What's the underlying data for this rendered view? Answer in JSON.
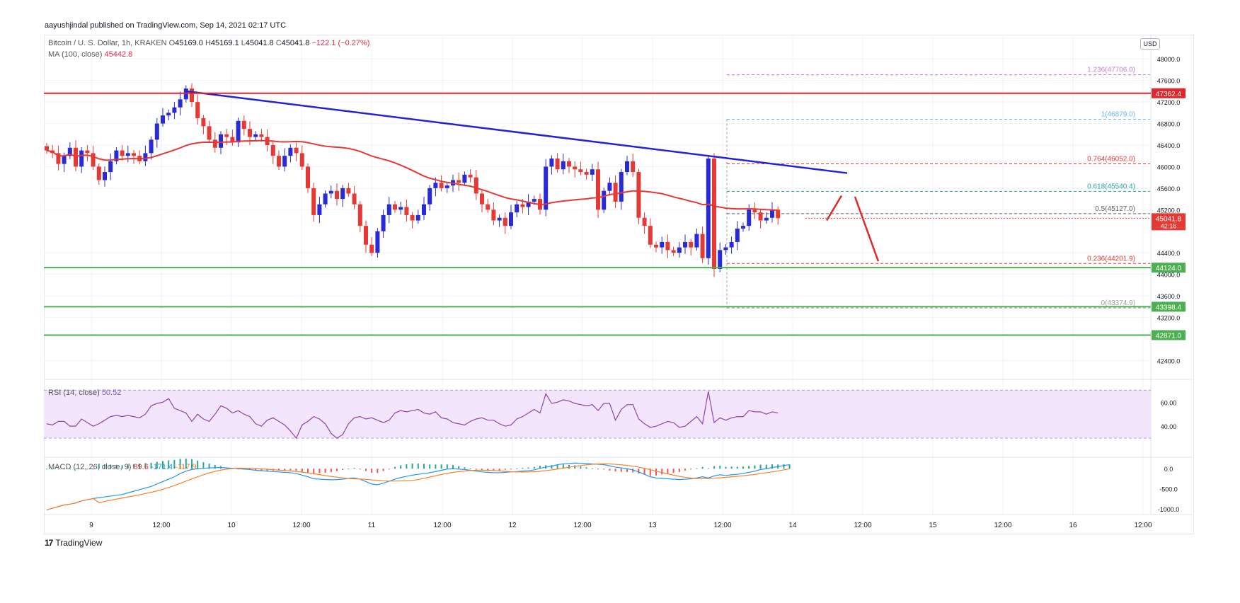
{
  "publish_line": "aayushjindal published on TradingView.com, Sep 14, 2021 02:17 UTC",
  "legend": {
    "symbol": "Bitcoin / U. S. Dollar, 1h, KRAKEN",
    "o_label": "O",
    "o": "45169.0",
    "h_label": "H",
    "h": "45169.1",
    "l_label": "L",
    "l": "45041.8",
    "c_label": "C",
    "c": "45041.8",
    "change": "−122.1 (−0.27%)",
    "ma_label": "MA (100, close)",
    "ma_value": "45442.8",
    "rsi_label": "RSI (14, close)",
    "rsi_value": "50.52",
    "macd_label": "MACD (12, 26, close, 9)",
    "macd_v1": "89.6",
    "macd_v2": "-171.4",
    "macd_v3": "-117.9"
  },
  "currency_button": "USD",
  "brand": {
    "logo": "17",
    "name": "TradingView"
  },
  "colors": {
    "up": "#2929d6",
    "down": "#e53935",
    "ma": "#e53935",
    "trendline": "#2323d4",
    "resistance": "#e0272b",
    "support": "#4caf50",
    "rsi": "#8e44ad",
    "rsi_band": "#f3e5fb",
    "macd": "#2196f3",
    "signal": "#ff7f27",
    "fib": "#9e9e9e"
  },
  "chart_data": {
    "type": "candlestick",
    "symbol": "Bitcoin / U. S. Dollar",
    "interval": "1h",
    "exchange": "KRAKEN",
    "x_ticks": [
      "9",
      "12:00",
      "10",
      "12:00",
      "11",
      "12:00",
      "12",
      "12:00",
      "13",
      "12:00",
      "14",
      "12:00",
      "15",
      "12:00",
      "16",
      "12:00"
    ],
    "y_ticks": [
      "48000.0",
      "47600.0",
      "47200.0",
      "46800.0",
      "46400.0",
      "46000.0",
      "45600.0",
      "45200.0",
      "44400.0",
      "44000.0",
      "43600.0",
      "43200.0",
      "42400.0"
    ],
    "ylim": [
      42050,
      48450
    ],
    "candles_close": [
      46300,
      46250,
      46050,
      46200,
      46350,
      46000,
      46300,
      46250,
      46000,
      45750,
      45900,
      46100,
      46300,
      46200,
      46250,
      46200,
      46100,
      46250,
      46500,
      46800,
      46950,
      47000,
      47100,
      47250,
      47450,
      47200,
      46900,
      46750,
      46500,
      46350,
      46600,
      46550,
      46450,
      46850,
      46700,
      46550,
      46600,
      46550,
      46400,
      46200,
      46000,
      46200,
      46350,
      46250,
      46000,
      45600,
      45100,
      45300,
      45500,
      45550,
      45400,
      45600,
      45500,
      45300,
      44900,
      44550,
      44400,
      44800,
      45100,
      45300,
      45200,
      45250,
      45100,
      45000,
      45100,
      45300,
      45600,
      45700,
      45600,
      45650,
      45750,
      45700,
      45850,
      45800,
      45500,
      45300,
      45200,
      45000,
      45050,
      44900,
      45150,
      45300,
      45250,
      45350,
      45400,
      45200,
      46000,
      46150,
      45950,
      46100,
      46000,
      45950,
      45900,
      45850,
      45950,
      45200,
      45550,
      45700,
      45350,
      45900,
      46100,
      45900,
      45050,
      44900,
      44550,
      44500,
      44600,
      44450,
      44400,
      44500,
      44600,
      44500,
      44750,
      44300,
      46150,
      44100,
      44450,
      44500,
      44600,
      44850,
      44900,
      45200,
      45150,
      45000,
      45050,
      45200,
      45041.8
    ],
    "ma_100": {
      "label": "MA (100, close)",
      "last": 45442.8
    },
    "horizontal_levels": [
      {
        "label": "47362.4",
        "value": 47362.4,
        "kind": "resistance"
      },
      {
        "label": "44124.0",
        "value": 44124.0,
        "kind": "support"
      },
      {
        "label": "43398.4",
        "value": 43398.4,
        "kind": "support"
      },
      {
        "label": "42871.0",
        "value": 42871.0,
        "kind": "support"
      }
    ],
    "last_price": {
      "label": "45041.8",
      "countdown": "42:16"
    },
    "fibonacci": [
      {
        "label": "1.236(47706.0)",
        "value": 47706.0
      },
      {
        "label": "1(46879.0)",
        "value": 46879.0
      },
      {
        "label": "0.764(46052.0)",
        "value": 46052.0
      },
      {
        "label": "0.618(45540.4)",
        "value": 45540.4
      },
      {
        "label": "0.5(45127.0)",
        "value": 45127.0
      },
      {
        "label": "0.236(44201.9)",
        "value": 44201.9
      },
      {
        "label": "0(43374.9)",
        "value": 43374.9
      }
    ],
    "trendline": {
      "from_value": 47400,
      "to_value": 45880
    },
    "rsi": {
      "y_ticks": [
        "60.00",
        "40.00"
      ],
      "upper": 70,
      "lower": 30,
      "values": [
        42,
        41,
        44,
        44,
        40,
        40,
        46,
        43,
        40,
        42,
        45,
        48,
        49,
        48,
        49,
        48,
        47,
        50,
        57,
        59,
        60,
        63,
        55,
        53,
        51,
        44,
        50,
        46,
        44,
        50,
        57,
        55,
        51,
        53,
        50,
        48,
        42,
        40,
        45,
        47,
        44,
        41,
        36,
        30,
        41,
        44,
        48,
        46,
        42,
        34,
        30,
        33,
        42,
        47,
        48,
        46,
        47,
        45,
        43,
        45,
        51,
        53,
        52,
        53,
        54,
        51,
        50,
        52,
        47,
        46,
        43,
        42,
        41,
        44,
        46,
        47,
        45,
        45,
        42,
        40,
        41,
        46,
        48,
        51,
        54,
        51,
        67,
        59,
        60,
        62,
        61,
        59,
        58,
        57,
        58,
        53,
        59,
        59,
        45,
        54,
        58,
        58,
        46,
        42,
        39,
        40,
        42,
        44,
        43,
        39,
        40,
        44,
        48,
        42,
        69,
        43,
        47,
        45,
        47,
        48,
        48,
        53,
        52,
        52,
        50,
        52,
        51
      ]
    },
    "macd": {
      "y_ticks": [
        "0.0",
        "-500.0",
        "-1000.0"
      ],
      "macd_values": [
        -1020,
        -980,
        -940,
        -900,
        -880,
        -850,
        -800,
        -770,
        -740,
        -720,
        -700,
        -680,
        -660,
        -640,
        -600,
        -560,
        -520,
        -480,
        -440,
        -380,
        -320,
        -260,
        -200,
        -120,
        -60,
        -20,
        0,
        10,
        20,
        25,
        30,
        20,
        10,
        0,
        -10,
        -20,
        -40,
        -50,
        -60,
        -70,
        -80,
        -90,
        -100,
        -120,
        -160,
        -200,
        -250,
        -260,
        -270,
        -275,
        -270,
        -260,
        -240,
        -230,
        -260,
        -320,
        -380,
        -400,
        -360,
        -310,
        -260,
        -220,
        -190,
        -160,
        -140,
        -120,
        -100,
        -70,
        -40,
        -10,
        0,
        -10,
        -20,
        -40,
        -60,
        -80,
        -90,
        -100,
        -100,
        -90,
        -80,
        -70,
        -60,
        -50,
        -30,
        10,
        40,
        60,
        100,
        120,
        130,
        140,
        135,
        130,
        120,
        110,
        100,
        70,
        40,
        20,
        0,
        -30,
        -80,
        -140,
        -200,
        -230,
        -240,
        -250,
        -260,
        -270,
        -260,
        -250,
        -230,
        -200,
        -230,
        -180,
        -150,
        -170,
        -150,
        -140,
        -120,
        -90,
        -60,
        -20,
        0,
        30,
        50,
        80,
        100
      ]
    }
  }
}
